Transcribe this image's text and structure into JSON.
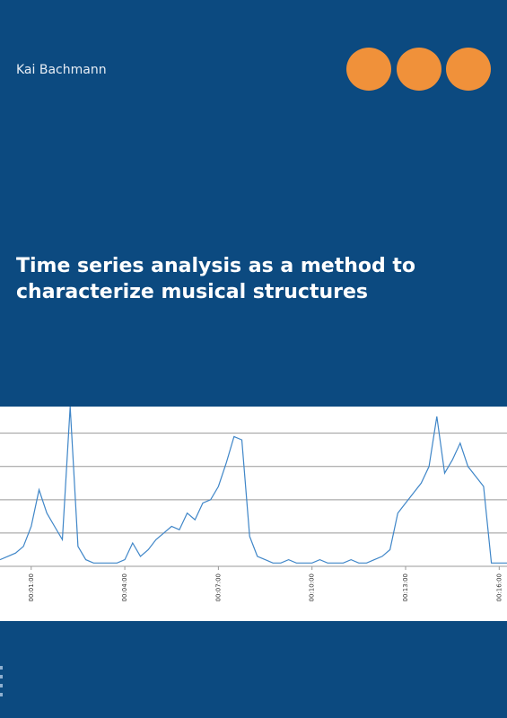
{
  "author": "Kai Bachmann",
  "title": "Time series analysis as a method to characterize musical structures",
  "chart_data": {
    "type": "line",
    "x": [
      0,
      15,
      30,
      45,
      60,
      75,
      90,
      105,
      120,
      135,
      150,
      165,
      180,
      195,
      210,
      225,
      240,
      255,
      270,
      285,
      300,
      315,
      330,
      345,
      360,
      375,
      390,
      405,
      420,
      435,
      450,
      465,
      480,
      495,
      510,
      525,
      540,
      555,
      570,
      585,
      600,
      615,
      630,
      645,
      660,
      675,
      690,
      705,
      720,
      735,
      750,
      765,
      780,
      795,
      810,
      825,
      840,
      855,
      870,
      885,
      900,
      915,
      930,
      945,
      960,
      975
    ],
    "series": [
      {
        "color": "#3f86c8",
        "values": [
          0.2,
          0.3,
          0.4,
          0.6,
          1.2,
          2.3,
          1.6,
          1.2,
          0.8,
          4.8,
          0.6,
          0.2,
          0.1,
          0.1,
          0.1,
          0.1,
          0.2,
          0.7,
          0.3,
          0.5,
          0.8,
          1.0,
          1.2,
          1.1,
          1.6,
          1.4,
          1.9,
          2.0,
          2.4,
          3.1,
          3.9,
          3.8,
          0.9,
          0.3,
          0.2,
          0.1,
          0.1,
          0.2,
          0.1,
          0.1,
          0.1,
          0.2,
          0.1,
          0.1,
          0.1,
          0.2,
          0.1,
          0.1,
          0.2,
          0.3,
          0.5,
          1.6,
          1.9,
          2.2,
          2.5,
          3.0,
          4.5,
          2.8,
          3.2,
          3.7,
          3.0,
          2.7,
          2.4,
          0.1,
          0.1,
          0.1
        ]
      }
    ],
    "xlim": [
      0,
      975
    ],
    "xticks": [
      {
        "value": 60,
        "label": "00:01:00"
      },
      {
        "value": 240,
        "label": "00:04:00"
      },
      {
        "value": 420,
        "label": "00:07:00"
      },
      {
        "value": 600,
        "label": "00:10:00"
      },
      {
        "value": 780,
        "label": "00:13:00"
      },
      {
        "value": 960,
        "label": "00:16:00"
      }
    ],
    "ylim": [
      0,
      4.8
    ],
    "ygrid": [
      1,
      2,
      3,
      4
    ],
    "grid": true
  }
}
